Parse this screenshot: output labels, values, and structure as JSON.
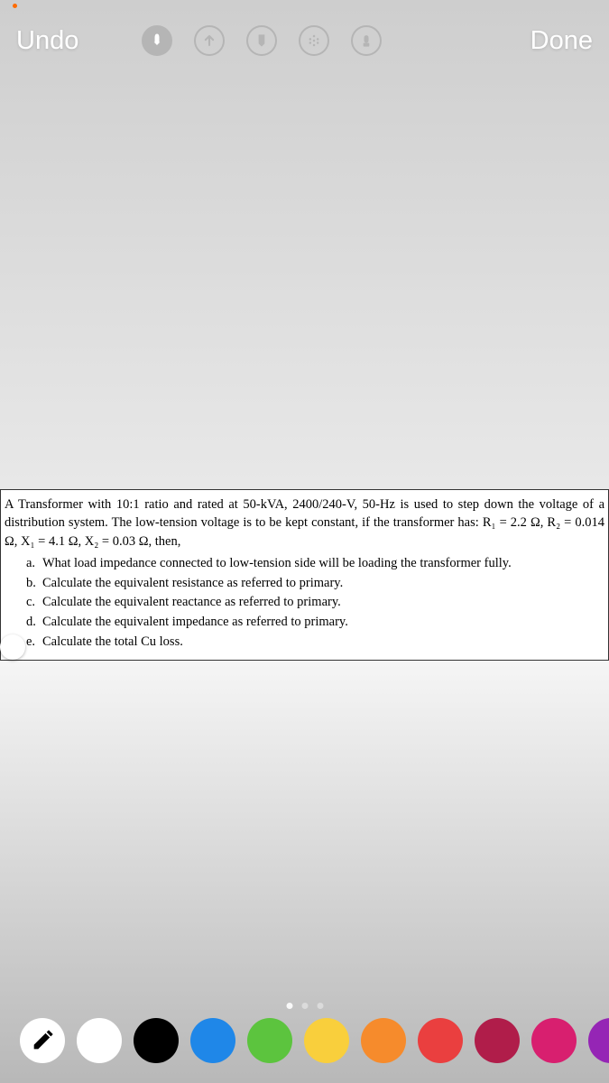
{
  "status": {
    "dot1_color": "#ff6b00",
    "dot2_color": "#a0a0a0"
  },
  "header": {
    "undo_label": "Undo",
    "done_label": "Done",
    "icon_border_color": "#b5b5b5"
  },
  "tools": [
    {
      "name": "marker-tool",
      "icon": "marker"
    },
    {
      "name": "arrow-tool",
      "icon": "arrow-up"
    },
    {
      "name": "highlighter-tool",
      "icon": "highlighter"
    },
    {
      "name": "dotted-tool",
      "icon": "dotted"
    },
    {
      "name": "eraser-tool",
      "icon": "eraser"
    }
  ],
  "content": {
    "intro": "A Transformer with 10:1 ratio and rated at 50-kVA, 2400/240-V, 50-Hz is used to step down the voltage of a distribution system. The low-tension voltage is to be kept constant, if the transformer has: R₁ = 2.2 Ω, R₂ = 0.014 Ω, X₁ = 4.1 Ω, X₂ = 0.03 Ω, then,",
    "items": [
      {
        "marker": "a.",
        "text": "What load impedance connected to low-tension side will be loading the transformer fully."
      },
      {
        "marker": "b.",
        "text": "Calculate the equivalent resistance as referred to primary."
      },
      {
        "marker": "c.",
        "text": "Calculate the equivalent reactance as referred to primary."
      },
      {
        "marker": "d.",
        "text": "Calculate the equivalent impedance as referred to primary."
      },
      {
        "marker": "e.",
        "text": "Calculate the total Cu loss."
      }
    ]
  },
  "palette": {
    "colors": [
      {
        "name": "white",
        "hex": "#ffffff",
        "selected": true
      },
      {
        "name": "black",
        "hex": "#000000",
        "selected": false
      },
      {
        "name": "blue",
        "hex": "#1f87e8",
        "selected": false
      },
      {
        "name": "green",
        "hex": "#5cc43e",
        "selected": false
      },
      {
        "name": "yellow",
        "hex": "#f9cf3c",
        "selected": false
      },
      {
        "name": "orange",
        "hex": "#f68b2c",
        "selected": false
      },
      {
        "name": "red",
        "hex": "#ea3f3f",
        "selected": false
      },
      {
        "name": "dark-red",
        "hex": "#b01d4a",
        "selected": false
      },
      {
        "name": "magenta",
        "hex": "#d81f6f",
        "selected": false
      },
      {
        "name": "purple",
        "hex": "#9525b5",
        "selected": false
      }
    ]
  },
  "page_indicator": {
    "total": 3,
    "active": 0
  }
}
